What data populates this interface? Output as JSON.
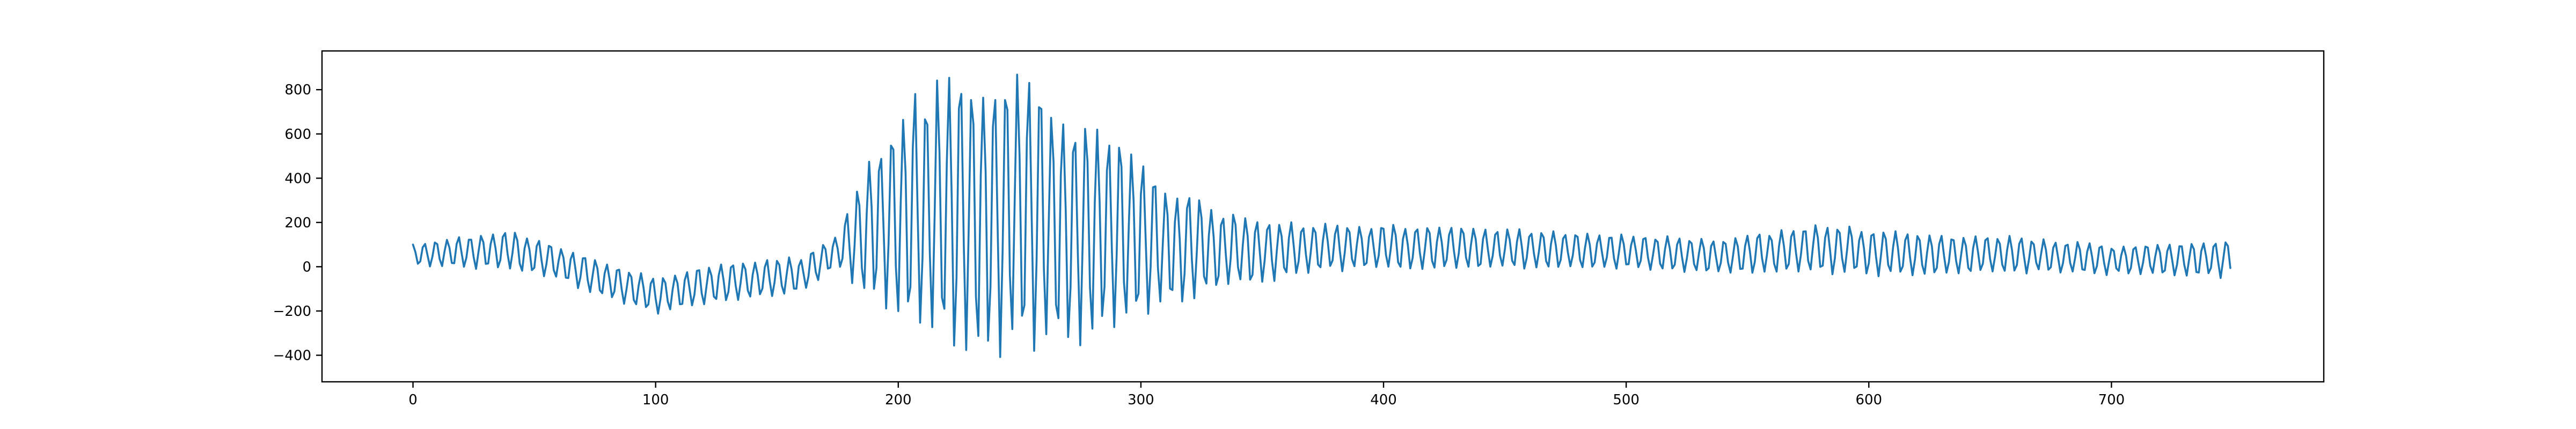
{
  "chart_data": {
    "type": "line",
    "title": "",
    "xlabel": "",
    "ylabel": "",
    "xlim": [
      -37.5,
      787.5
    ],
    "ylim": [
      -520,
      975
    ],
    "x_ticks": [
      0,
      100,
      200,
      300,
      400,
      500,
      600,
      700
    ],
    "y_ticks": [
      -400,
      -200,
      0,
      200,
      400,
      600,
      800
    ],
    "grid": false,
    "legend": "none",
    "series": [
      {
        "color": "#1f77b4",
        "x_start": 0,
        "x_end": 749,
        "n_points": 750,
        "approx_period": 4.7,
        "envelope": [
          {
            "x": 0,
            "upper": 100,
            "lower": 5
          },
          {
            "x": 20,
            "upper": 140,
            "lower": -10
          },
          {
            "x": 40,
            "upper": 170,
            "lower": -20
          },
          {
            "x": 60,
            "upper": 100,
            "lower": -70
          },
          {
            "x": 80,
            "upper": 20,
            "lower": -150
          },
          {
            "x": 100,
            "upper": -50,
            "lower": -220
          },
          {
            "x": 120,
            "upper": 10,
            "lower": -180
          },
          {
            "x": 140,
            "upper": 30,
            "lower": -150
          },
          {
            "x": 160,
            "upper": 50,
            "lower": -130
          },
          {
            "x": 175,
            "upper": 150,
            "lower": -10
          },
          {
            "x": 190,
            "upper": 550,
            "lower": -200
          },
          {
            "x": 210,
            "upper": 850,
            "lower": -350
          },
          {
            "x": 235,
            "upper": 900,
            "lower": -455
          },
          {
            "x": 255,
            "upper": 880,
            "lower": -440
          },
          {
            "x": 270,
            "upper": 750,
            "lower": -400
          },
          {
            "x": 290,
            "upper": 600,
            "lower": -330
          },
          {
            "x": 310,
            "upper": 400,
            "lower": -200
          },
          {
            "x": 330,
            "upper": 280,
            "lower": -130
          },
          {
            "x": 350,
            "upper": 220,
            "lower": -80
          },
          {
            "x": 380,
            "upper": 200,
            "lower": -30
          },
          {
            "x": 420,
            "upper": 190,
            "lower": -20
          },
          {
            "x": 460,
            "upper": 170,
            "lower": -15
          },
          {
            "x": 500,
            "upper": 150,
            "lower": -20
          },
          {
            "x": 540,
            "upper": 130,
            "lower": -40
          },
          {
            "x": 580,
            "upper": 200,
            "lower": -35
          },
          {
            "x": 620,
            "upper": 150,
            "lower": -50
          },
          {
            "x": 660,
            "upper": 140,
            "lower": -30
          },
          {
            "x": 700,
            "upper": 100,
            "lower": -40
          },
          {
            "x": 749,
            "upper": 130,
            "lower": -55
          }
        ]
      }
    ]
  }
}
